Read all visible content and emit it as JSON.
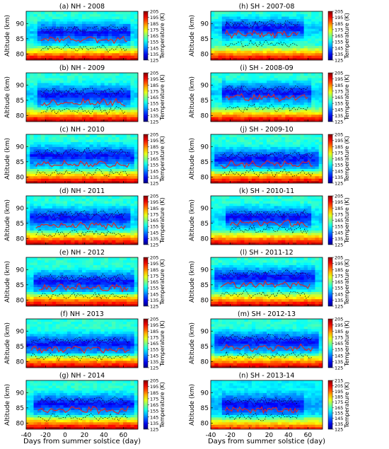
{
  "figure": {
    "xlabel": "Days from summer solstice (day)",
    "ylabel": "Altitude (km)",
    "colorbar_label": "Temperature (K)",
    "colormap": "jet"
  },
  "chart_data": [
    {
      "type": "heatmap",
      "title": "(a) NH - 2008",
      "xlim": [
        -40,
        75
      ],
      "ylim": [
        78,
        94
      ],
      "yticks": [
        80,
        85,
        90
      ],
      "xticks": [
        -40,
        -20,
        0,
        20,
        40,
        60
      ],
      "show_xticklabels": false,
      "colorbar_ticks": [
        205,
        195,
        185,
        175,
        165,
        155,
        145,
        135,
        125
      ],
      "clim": [
        125,
        205
      ],
      "lines": {
        "x_range": [
          -25,
          64
        ],
        "upper_mean_km": 87.5,
        "mean_km": 84.8,
        "lower_mean_km": 82.0
      }
    },
    {
      "type": "heatmap",
      "title": "(b) NH - 2009",
      "xlim": [
        -40,
        75
      ],
      "ylim": [
        78,
        94
      ],
      "yticks": [
        80,
        85,
        90
      ],
      "xticks": [
        -40,
        -20,
        0,
        20,
        40,
        60
      ],
      "show_xticklabels": false,
      "colorbar_ticks": [
        205,
        195,
        185,
        175,
        165,
        155,
        145,
        135,
        125
      ],
      "clim": [
        125,
        205
      ],
      "lines": {
        "x_range": [
          -25,
          62
        ],
        "upper_mean_km": 87.2,
        "mean_km": 84.3,
        "lower_mean_km": 81.8
      }
    },
    {
      "type": "heatmap",
      "title": "(c) NH - 2010",
      "xlim": [
        -40,
        75
      ],
      "ylim": [
        78,
        94
      ],
      "yticks": [
        80,
        85,
        90
      ],
      "xticks": [
        -40,
        -20,
        0,
        20,
        40,
        60
      ],
      "show_xticklabels": false,
      "colorbar_ticks": [
        205,
        195,
        185,
        175,
        165,
        155,
        145,
        135,
        125
      ],
      "clim": [
        125,
        205
      ],
      "lines": {
        "x_range": [
          -30,
          66
        ],
        "upper_mean_km": 87.5,
        "mean_km": 84.3,
        "lower_mean_km": 81.5
      }
    },
    {
      "type": "heatmap",
      "title": "(d) NH - 2011",
      "xlim": [
        -40,
        75
      ],
      "ylim": [
        78,
        94
      ],
      "yticks": [
        80,
        85,
        90
      ],
      "xticks": [
        -40,
        -20,
        0,
        20,
        40,
        60
      ],
      "show_xticklabels": false,
      "colorbar_ticks": [
        205,
        195,
        185,
        175,
        165,
        155,
        145,
        135,
        125
      ],
      "clim": [
        125,
        205
      ],
      "lines": {
        "x_range": [
          -30,
          62
        ],
        "upper_mean_km": 87.3,
        "mean_km": 84.2,
        "lower_mean_km": 81.7
      }
    },
    {
      "type": "heatmap",
      "title": "(e) NH - 2012",
      "xlim": [
        -40,
        75
      ],
      "ylim": [
        78,
        94
      ],
      "yticks": [
        80,
        85,
        90
      ],
      "xticks": [
        -40,
        -20,
        0,
        20,
        40,
        60
      ],
      "show_xticklabels": false,
      "colorbar_ticks": [
        205,
        195,
        185,
        175,
        165,
        155,
        145,
        135,
        125
      ],
      "clim": [
        125,
        205
      ],
      "lines": {
        "x_range": [
          -27,
          65
        ],
        "upper_mean_km": 86.6,
        "mean_km": 84.0,
        "lower_mean_km": 81.3
      }
    },
    {
      "type": "heatmap",
      "title": "(f) NH - 2013",
      "xlim": [
        -40,
        75
      ],
      "ylim": [
        78,
        94
      ],
      "yticks": [
        80,
        85,
        90
      ],
      "xticks": [
        -40,
        -20,
        0,
        20,
        40,
        60
      ],
      "show_xticklabels": false,
      "colorbar_ticks": [
        205,
        195,
        185,
        175,
        165,
        155,
        145,
        135,
        125
      ],
      "clim": [
        125,
        205
      ],
      "lines": {
        "x_range": [
          -35,
          66
        ],
        "upper_mean_km": 86.3,
        "mean_km": 84.0,
        "lower_mean_km": 81.7
      }
    },
    {
      "type": "heatmap",
      "title": "(g) NH - 2014",
      "xlim": [
        -40,
        75
      ],
      "ylim": [
        78,
        94
      ],
      "yticks": [
        80,
        85,
        90
      ],
      "xticks": [
        -40,
        -20,
        0,
        20,
        40,
        60
      ],
      "show_xticklabels": true,
      "colorbar_ticks": [
        205,
        195,
        185,
        175,
        165,
        155,
        145,
        135,
        125
      ],
      "clim": [
        125,
        205
      ],
      "lines": {
        "x_range": [
          -28,
          65
        ],
        "upper_mean_km": 86.8,
        "mean_km": 84.3,
        "lower_mean_km": 82.0
      }
    },
    {
      "type": "heatmap",
      "title": "(h) SH - 2007-08",
      "xlim": [
        -40,
        75
      ],
      "ylim": [
        78,
        94
      ],
      "yticks": [
        80,
        85,
        90
      ],
      "xticks": [
        -40,
        -20,
        0,
        20,
        40,
        60
      ],
      "show_xticklabels": false,
      "colorbar_ticks": [
        205,
        195,
        185,
        175,
        165,
        155,
        145,
        135,
        125
      ],
      "clim": [
        125,
        205
      ],
      "lines": {
        "x_range": [
          -25,
          50
        ],
        "upper_mean_km": 89.0,
        "mean_km": 86.5,
        "lower_mean_km": 83.5
      }
    },
    {
      "type": "heatmap",
      "title": "(i) SH - 2008-09",
      "xlim": [
        -40,
        75
      ],
      "ylim": [
        78,
        94
      ],
      "yticks": [
        80,
        85,
        90
      ],
      "xticks": [
        -40,
        -20,
        0,
        20,
        40,
        60
      ],
      "show_xticklabels": false,
      "colorbar_ticks": [
        205,
        195,
        185,
        175,
        165,
        155,
        145,
        135,
        125
      ],
      "clim": [
        125,
        205
      ],
      "lines": {
        "x_range": [
          -25,
          60
        ],
        "upper_mean_km": 88.0,
        "mean_km": 86.0,
        "lower_mean_km": 82.5
      }
    },
    {
      "type": "heatmap",
      "title": "(j) SH - 2009-10",
      "xlim": [
        -40,
        75
      ],
      "ylim": [
        78,
        94
      ],
      "yticks": [
        80,
        85,
        90
      ],
      "xticks": [
        -40,
        -20,
        0,
        20,
        40,
        60
      ],
      "show_xticklabels": false,
      "colorbar_ticks": [
        205,
        195,
        185,
        175,
        165,
        155,
        145,
        135,
        125
      ],
      "clim": [
        125,
        205
      ],
      "lines": {
        "x_range": [
          -30,
          65
        ],
        "upper_mean_km": 86.5,
        "mean_km": 84.3,
        "lower_mean_km": 81.5
      }
    },
    {
      "type": "heatmap",
      "title": "(k) SH - 2010-11",
      "xlim": [
        -40,
        75
      ],
      "ylim": [
        78,
        94
      ],
      "yticks": [
        80,
        85,
        90
      ],
      "xticks": [
        -40,
        -20,
        0,
        20,
        40,
        60
      ],
      "show_xticklabels": false,
      "colorbar_ticks": [
        205,
        195,
        185,
        175,
        165,
        155,
        145,
        135,
        125
      ],
      "clim": [
        125,
        205
      ],
      "lines": {
        "x_range": [
          -20,
          60
        ],
        "upper_mean_km": 87.5,
        "mean_km": 85.0,
        "lower_mean_km": 83.0
      }
    },
    {
      "type": "heatmap",
      "title": "(l) SH - 2011-12",
      "xlim": [
        -40,
        75
      ],
      "ylim": [
        78,
        94
      ],
      "yticks": [
        80,
        85,
        90
      ],
      "xticks": [
        -40,
        -20,
        0,
        20,
        40,
        60
      ],
      "show_xticklabels": false,
      "colorbar_ticks": [
        205,
        195,
        185,
        175,
        165,
        155,
        145,
        135,
        125
      ],
      "clim": [
        125,
        205
      ],
      "lines": {
        "x_range": [
          -30,
          62
        ],
        "upper_mean_km": 88.0,
        "mean_km": 85.0,
        "lower_mean_km": 82.0
      }
    },
    {
      "type": "heatmap",
      "title": "(m) SH - 2012-13",
      "xlim": [
        -40,
        75
      ],
      "ylim": [
        78,
        94
      ],
      "yticks": [
        80,
        85,
        90
      ],
      "xticks": [
        -40,
        -20,
        0,
        20,
        40,
        60
      ],
      "show_xticklabels": false,
      "colorbar_ticks": [
        205,
        195,
        185,
        175,
        165,
        155,
        145,
        135,
        125
      ],
      "clim": [
        125,
        205
      ],
      "lines": {
        "x_range": [
          -30,
          65
        ],
        "upper_mean_km": 87.0,
        "mean_km": 84.5,
        "lower_mean_km": 82.0
      }
    },
    {
      "type": "heatmap",
      "title": "(n) SH - 2013-14",
      "xlim": [
        -40,
        75
      ],
      "ylim": [
        78,
        94
      ],
      "yticks": [
        80,
        85,
        90
      ],
      "xticks": [
        -40,
        -20,
        0,
        20,
        40,
        60
      ],
      "show_xticklabels": true,
      "colorbar_ticks": [
        215,
        205,
        195,
        185,
        175,
        165,
        155,
        145,
        135,
        125
      ],
      "clim": [
        125,
        215
      ],
      "lines": {
        "x_range": [
          -25,
          50
        ],
        "upper_mean_km": 86.5,
        "mean_km": 84.5,
        "lower_mean_km": 82.0
      }
    }
  ]
}
